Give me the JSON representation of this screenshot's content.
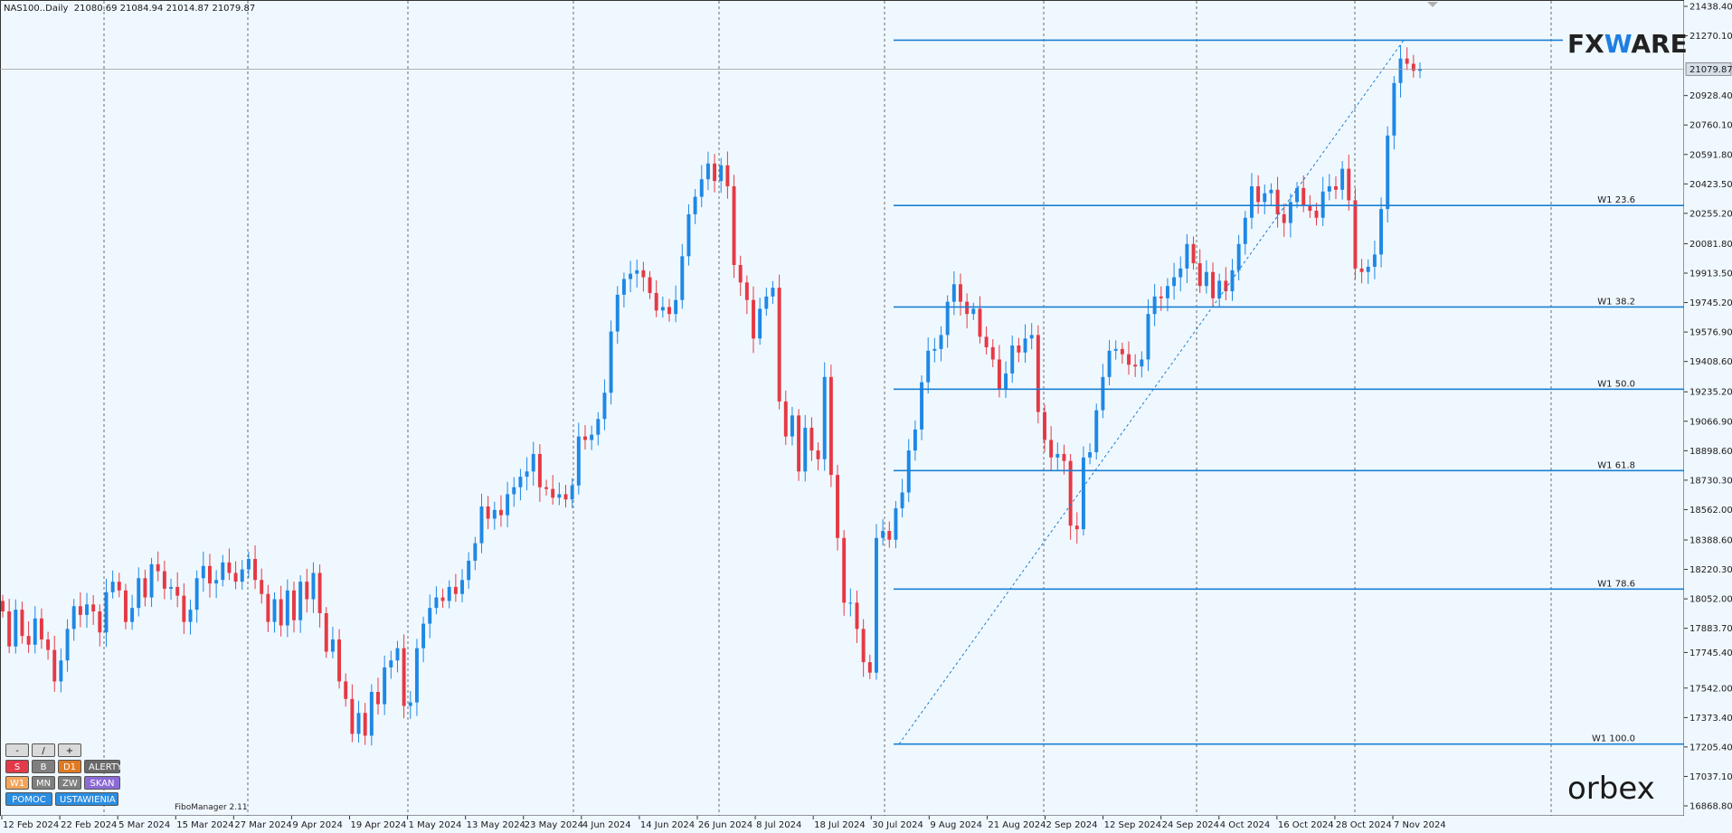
{
  "header": {
    "symbol": "NAS100..Daily",
    "ohlc": "21080.69 21084.94 21014.87 21079.87"
  },
  "price_label": "21079.87",
  "logos": {
    "fxware_prefix": "FX",
    "fxware_w": "W",
    "fxware_suffix": "ARE",
    "orbex": "orbex"
  },
  "footer_label": "FiboManager 2.11",
  "panel": {
    "row1": [
      "-",
      "/",
      "+"
    ],
    "row2": [
      "S",
      "B",
      "D1",
      "ALERTY"
    ],
    "row3": [
      "W1",
      "MN",
      "ZW",
      "SKAN"
    ],
    "row4": [
      "POMOC",
      "USTAWIENIA"
    ]
  },
  "colors": {
    "up": "#1e88e5",
    "down": "#e53945",
    "fib": "#1b7fd1",
    "grid": "#4a4a4a",
    "bg": "#f0f8ff"
  },
  "chart_data": {
    "type": "candlestick",
    "y_range": [
      16800,
      21438.4
    ],
    "y_ticks": [
      21438.4,
      21270.1,
      20928.4,
      20760.1,
      20591.8,
      20423.5,
      20255.2,
      20081.8,
      19913.5,
      19745.2,
      19576.9,
      19408.6,
      19235.2,
      19066.9,
      18898.6,
      18730.3,
      18562.0,
      18388.6,
      18220.3,
      18052.0,
      17883.7,
      17745.4,
      17542.0,
      17373.4,
      17205.4,
      17037.1,
      16868.8
    ],
    "x_labels": [
      "12 Feb 2024",
      "22 Feb 2024",
      "5 Mar 2024",
      "15 Mar 2024",
      "27 Mar 2024",
      "9 Apr 2024",
      "19 Apr 2024",
      "1 May 2024",
      "13 May 2024",
      "23 May 2024",
      "4 Jun 2024",
      "14 Jun 2024",
      "26 Jun 2024",
      "8 Jul 2024",
      "18 Jul 2024",
      "30 Jul 2024",
      "9 Aug 2024",
      "21 Aug 2024",
      "2 Sep 2024",
      "12 Sep 2024",
      "24 Sep 2024",
      "4 Oct 2024",
      "16 Oct 2024",
      "28 Oct 2024",
      "7 Nov 2024"
    ],
    "fib_levels": [
      {
        "label": "",
        "price": 21245
      },
      {
        "label": "W1 23.6",
        "price": 20300
      },
      {
        "label": "W1 38.2",
        "price": 19720
      },
      {
        "label": "W1 50.0",
        "price": 19250
      },
      {
        "label": "W1 61.8",
        "price": 18785
      },
      {
        "label": "W1 78.6",
        "price": 18108
      },
      {
        "label": "W1 100.0",
        "price": 17222
      }
    ],
    "closes": [
      17980,
      17780,
      17990,
      17840,
      17790,
      17940,
      17820,
      17760,
      17580,
      17700,
      17880,
      18010,
      17960,
      18020,
      17980,
      17860,
      18090,
      18150,
      18100,
      17920,
      18000,
      18170,
      18060,
      18250,
      18210,
      18110,
      18120,
      18070,
      17920,
      17990,
      18170,
      18240,
      18140,
      18160,
      18260,
      18200,
      18150,
      18220,
      18280,
      18160,
      18080,
      17920,
      18050,
      17900,
      18100,
      17930,
      18150,
      18050,
      18200,
      17970,
      17750,
      17820,
      17580,
      17480,
      17280,
      17400,
      17270,
      17520,
      17450,
      17660,
      17700,
      17770,
      17440,
      17460,
      17770,
      17910,
      18000,
      18060,
      18040,
      18120,
      18080,
      18160,
      18270,
      18370,
      18580,
      18510,
      18560,
      18530,
      18650,
      18690,
      18750,
      18780,
      18880,
      18690,
      18680,
      18630,
      18650,
      18620,
      18700,
      18980,
      18960,
      18990,
      19080,
      19230,
      19580,
      19790,
      19880,
      19910,
      19930,
      19890,
      19800,
      19700,
      19720,
      19680,
      19760,
      20010,
      20250,
      20350,
      20450,
      20540,
      20440,
      20530,
      20410,
      19960,
      19860,
      19760,
      19540,
      19710,
      19780,
      19830,
      19180,
      18980,
      19100,
      18780,
      19030,
      18900,
      18850,
      19320,
      18760,
      18400,
      18030,
      18030,
      17880,
      17690,
      17630,
      18400,
      18440,
      18390,
      18570,
      18660,
      18900,
      19020,
      19290,
      19470,
      19480,
      19560,
      19750,
      19850,
      19750,
      19680,
      19710,
      19550,
      19490,
      19420,
      19250,
      19340,
      19500,
      19460,
      19540,
      19560,
      19120,
      18960,
      18860,
      18880,
      18840,
      18470,
      18450,
      18860,
      18890,
      19130,
      19320,
      19470,
      19480,
      19450,
      19390,
      19380,
      19420,
      19680,
      19780,
      19770,
      19840,
      19890,
      19940,
      20080,
      19970,
      19840,
      19920,
      19770,
      19870,
      19810,
      19930,
      20080,
      20230,
      20410,
      20320,
      20370,
      20390,
      20250,
      20200,
      20320,
      20400,
      20300,
      20270,
      20230,
      20380,
      20410,
      20390,
      20510,
      20330,
      19940,
      19920,
      19950,
      20020,
      20280,
      20700,
      21000,
      21140,
      21110,
      21070,
      21080
    ]
  }
}
